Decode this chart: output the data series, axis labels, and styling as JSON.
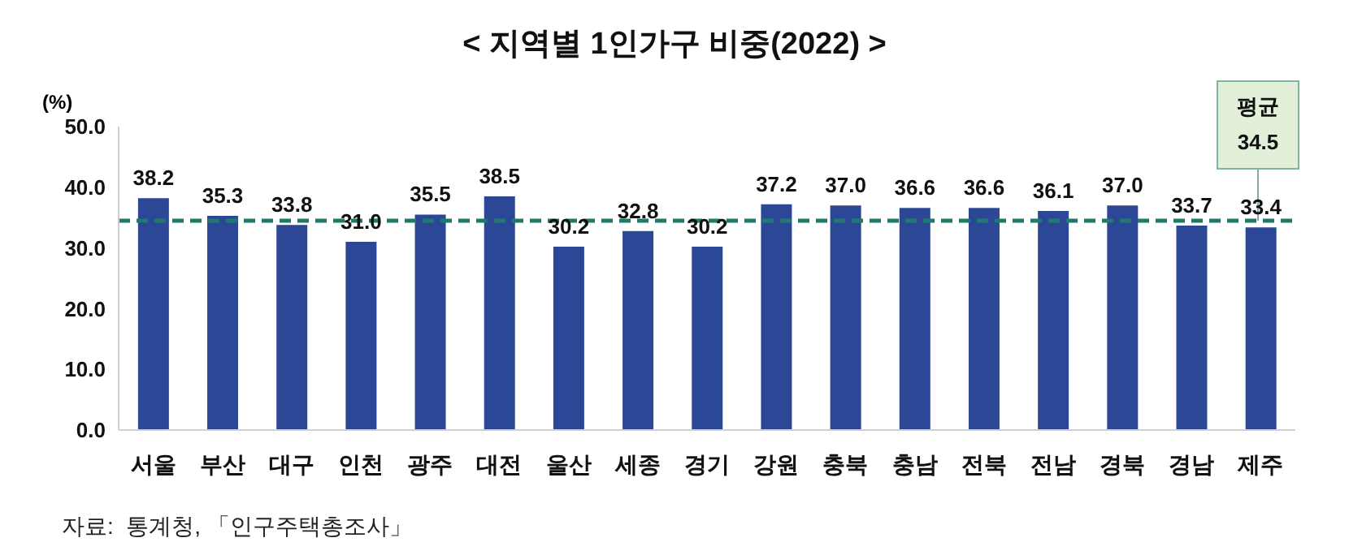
{
  "chart_data": {
    "type": "bar",
    "title": "< 지역별 1인가구 비중(2022) >",
    "ylabel": "(%)",
    "categories": [
      "서울",
      "부산",
      "대구",
      "인천",
      "광주",
      "대전",
      "울산",
      "세종",
      "경기",
      "강원",
      "충북",
      "충남",
      "전북",
      "전남",
      "경북",
      "경남",
      "제주"
    ],
    "values": [
      38.2,
      35.3,
      33.8,
      31.0,
      35.5,
      38.5,
      30.2,
      32.8,
      30.2,
      37.2,
      37.0,
      36.6,
      36.6,
      36.1,
      37.0,
      33.7,
      33.4
    ],
    "value_labels": [
      "38.2",
      "35.3",
      "33.8",
      "31.0",
      "35.5",
      "38.5",
      "30.2",
      "32.8",
      "30.2",
      "37.2",
      "37.0",
      "36.6",
      "36.6",
      "36.1",
      "37.0",
      "33.7",
      "33.4"
    ],
    "color": "#2b4796",
    "ylim": [
      0,
      50
    ],
    "yticks": [
      {
        "value": 0,
        "label": "0.0"
      },
      {
        "value": 10,
        "label": "10.0"
      },
      {
        "value": 20,
        "label": "20.0"
      },
      {
        "value": 30,
        "label": "30.0"
      },
      {
        "value": 40,
        "label": "40.0"
      },
      {
        "value": 50,
        "label": "50.0"
      }
    ],
    "ref_lines": [
      {
        "axis": "y",
        "value": 34.5,
        "label": "평균\n34.5",
        "color": "#1f7a6c",
        "line_style": "dashed"
      }
    ],
    "annotations": [
      "자료:  통계청, 「인구주택총조사」"
    ],
    "grid": false,
    "legend": false
  }
}
